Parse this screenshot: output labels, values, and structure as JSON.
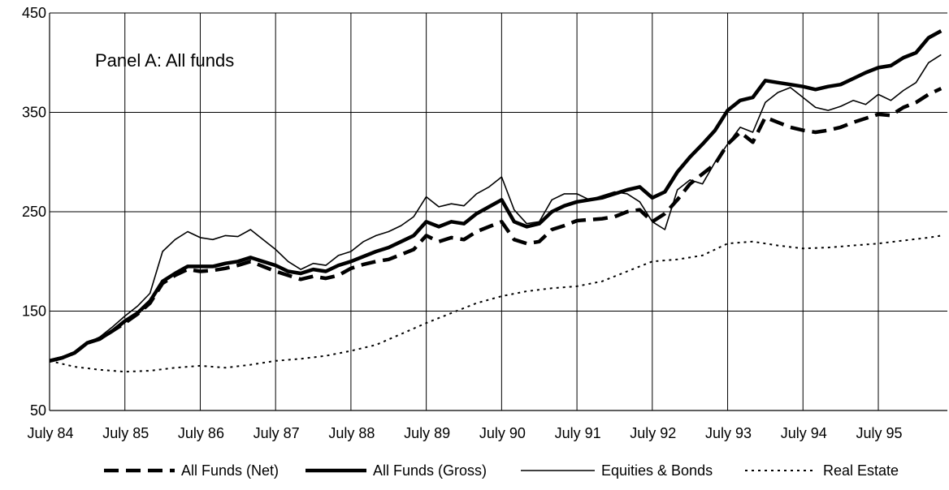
{
  "chart_data": {
    "type": "line",
    "title": "",
    "annotation": "Panel A: All funds",
    "xlabel": "",
    "ylabel": "",
    "ylim": [
      50,
      450
    ],
    "yticks": [
      50,
      150,
      250,
      350,
      450
    ],
    "x_tick_labels": [
      "July 84",
      "July 85",
      "July 86",
      "July 87",
      "July 88",
      "July 89",
      "July 90",
      "July 91",
      "July 92",
      "July 93",
      "July 94",
      "July 95"
    ],
    "x_tick_values": [
      0,
      12,
      24,
      36,
      48,
      60,
      72,
      84,
      96,
      108,
      120,
      132
    ],
    "x_unit": "months since July 84",
    "xlim": [
      0,
      143
    ],
    "grid": true,
    "legend_position": "bottom",
    "series": [
      {
        "name": "All Funds (Net)",
        "style": "dashed-thick",
        "color": "#000000",
        "points": [
          [
            0,
            100
          ],
          [
            2,
            103
          ],
          [
            4,
            108
          ],
          [
            6,
            118
          ],
          [
            8,
            122
          ],
          [
            10,
            130
          ],
          [
            12,
            138
          ],
          [
            14,
            147
          ],
          [
            16,
            158
          ],
          [
            18,
            178
          ],
          [
            20,
            186
          ],
          [
            22,
            192
          ],
          [
            24,
            190
          ],
          [
            26,
            191
          ],
          [
            28,
            193
          ],
          [
            30,
            196
          ],
          [
            32,
            200
          ],
          [
            34,
            195
          ],
          [
            36,
            190
          ],
          [
            38,
            186
          ],
          [
            40,
            182
          ],
          [
            42,
            185
          ],
          [
            44,
            183
          ],
          [
            46,
            186
          ],
          [
            48,
            193
          ],
          [
            50,
            197
          ],
          [
            52,
            200
          ],
          [
            54,
            202
          ],
          [
            56,
            207
          ],
          [
            58,
            212
          ],
          [
            60,
            226
          ],
          [
            62,
            220
          ],
          [
            64,
            224
          ],
          [
            66,
            222
          ],
          [
            68,
            230
          ],
          [
            70,
            235
          ],
          [
            72,
            240
          ],
          [
            74,
            222
          ],
          [
            76,
            218
          ],
          [
            78,
            220
          ],
          [
            80,
            232
          ],
          [
            82,
            236
          ],
          [
            84,
            241
          ],
          [
            86,
            242
          ],
          [
            88,
            243
          ],
          [
            90,
            245
          ],
          [
            92,
            250
          ],
          [
            94,
            252
          ],
          [
            96,
            240
          ],
          [
            98,
            248
          ],
          [
            100,
            262
          ],
          [
            102,
            278
          ],
          [
            104,
            288
          ],
          [
            106,
            298
          ],
          [
            108,
            318
          ],
          [
            110,
            330
          ],
          [
            112,
            320
          ],
          [
            114,
            345
          ],
          [
            116,
            340
          ],
          [
            118,
            335
          ],
          [
            120,
            332
          ],
          [
            122,
            330
          ],
          [
            124,
            332
          ],
          [
            126,
            335
          ],
          [
            128,
            340
          ],
          [
            130,
            344
          ],
          [
            132,
            348
          ],
          [
            134,
            347
          ],
          [
            136,
            355
          ],
          [
            138,
            360
          ],
          [
            140,
            368
          ],
          [
            142,
            374
          ]
        ]
      },
      {
        "name": "All Funds (Gross)",
        "style": "solid-thick",
        "color": "#000000",
        "points": [
          [
            0,
            100
          ],
          [
            2,
            103
          ],
          [
            4,
            108
          ],
          [
            6,
            118
          ],
          [
            8,
            122
          ],
          [
            10,
            130
          ],
          [
            12,
            140
          ],
          [
            14,
            148
          ],
          [
            16,
            160
          ],
          [
            18,
            180
          ],
          [
            20,
            188
          ],
          [
            22,
            195
          ],
          [
            24,
            195
          ],
          [
            26,
            195
          ],
          [
            28,
            198
          ],
          [
            30,
            200
          ],
          [
            32,
            204
          ],
          [
            34,
            200
          ],
          [
            36,
            196
          ],
          [
            38,
            190
          ],
          [
            40,
            188
          ],
          [
            42,
            192
          ],
          [
            44,
            190
          ],
          [
            46,
            196
          ],
          [
            48,
            200
          ],
          [
            50,
            205
          ],
          [
            52,
            210
          ],
          [
            54,
            214
          ],
          [
            56,
            220
          ],
          [
            58,
            226
          ],
          [
            60,
            240
          ],
          [
            62,
            235
          ],
          [
            64,
            240
          ],
          [
            66,
            238
          ],
          [
            68,
            248
          ],
          [
            70,
            255
          ],
          [
            72,
            262
          ],
          [
            74,
            240
          ],
          [
            76,
            235
          ],
          [
            78,
            238
          ],
          [
            80,
            250
          ],
          [
            82,
            256
          ],
          [
            84,
            260
          ],
          [
            86,
            262
          ],
          [
            88,
            264
          ],
          [
            90,
            268
          ],
          [
            92,
            272
          ],
          [
            94,
            275
          ],
          [
            96,
            264
          ],
          [
            98,
            270
          ],
          [
            100,
            290
          ],
          [
            102,
            305
          ],
          [
            104,
            318
          ],
          [
            106,
            332
          ],
          [
            108,
            352
          ],
          [
            110,
            362
          ],
          [
            112,
            365
          ],
          [
            114,
            382
          ],
          [
            116,
            380
          ],
          [
            118,
            378
          ],
          [
            120,
            376
          ],
          [
            122,
            373
          ],
          [
            124,
            376
          ],
          [
            126,
            378
          ],
          [
            128,
            384
          ],
          [
            130,
            390
          ],
          [
            132,
            395
          ],
          [
            134,
            397
          ],
          [
            136,
            405
          ],
          [
            138,
            410
          ],
          [
            140,
            425
          ],
          [
            142,
            432
          ]
        ]
      },
      {
        "name": "Equities & Bonds",
        "style": "solid-thin",
        "color": "#000000",
        "points": [
          [
            0,
            100
          ],
          [
            2,
            103
          ],
          [
            4,
            108
          ],
          [
            6,
            118
          ],
          [
            8,
            124
          ],
          [
            10,
            134
          ],
          [
            12,
            145
          ],
          [
            14,
            155
          ],
          [
            16,
            168
          ],
          [
            18,
            210
          ],
          [
            20,
            222
          ],
          [
            22,
            230
          ],
          [
            24,
            224
          ],
          [
            26,
            222
          ],
          [
            28,
            226
          ],
          [
            30,
            225
          ],
          [
            32,
            232
          ],
          [
            34,
            222
          ],
          [
            36,
            212
          ],
          [
            38,
            200
          ],
          [
            40,
            192
          ],
          [
            42,
            198
          ],
          [
            44,
            196
          ],
          [
            46,
            206
          ],
          [
            48,
            210
          ],
          [
            50,
            220
          ],
          [
            52,
            226
          ],
          [
            54,
            230
          ],
          [
            56,
            236
          ],
          [
            58,
            245
          ],
          [
            60,
            265
          ],
          [
            62,
            255
          ],
          [
            64,
            258
          ],
          [
            66,
            256
          ],
          [
            68,
            268
          ],
          [
            70,
            275
          ],
          [
            72,
            285
          ],
          [
            74,
            252
          ],
          [
            76,
            238
          ],
          [
            78,
            240
          ],
          [
            80,
            262
          ],
          [
            82,
            268
          ],
          [
            84,
            268
          ],
          [
            86,
            262
          ],
          [
            88,
            266
          ],
          [
            90,
            270
          ],
          [
            92,
            268
          ],
          [
            94,
            260
          ],
          [
            96,
            240
          ],
          [
            98,
            232
          ],
          [
            100,
            272
          ],
          [
            102,
            282
          ],
          [
            104,
            278
          ],
          [
            106,
            300
          ],
          [
            108,
            318
          ],
          [
            110,
            335
          ],
          [
            112,
            330
          ],
          [
            114,
            360
          ],
          [
            116,
            370
          ],
          [
            118,
            375
          ],
          [
            120,
            365
          ],
          [
            122,
            355
          ],
          [
            124,
            352
          ],
          [
            126,
            356
          ],
          [
            128,
            362
          ],
          [
            130,
            358
          ],
          [
            132,
            368
          ],
          [
            134,
            362
          ],
          [
            136,
            372
          ],
          [
            138,
            380
          ],
          [
            140,
            400
          ],
          [
            142,
            408
          ]
        ]
      },
      {
        "name": "Real Estate",
        "style": "dotted",
        "color": "#000000",
        "points": [
          [
            0,
            100
          ],
          [
            4,
            94
          ],
          [
            8,
            91
          ],
          [
            12,
            89
          ],
          [
            16,
            90
          ],
          [
            20,
            93
          ],
          [
            24,
            95
          ],
          [
            28,
            93
          ],
          [
            32,
            96
          ],
          [
            36,
            100
          ],
          [
            40,
            102
          ],
          [
            44,
            105
          ],
          [
            48,
            110
          ],
          [
            52,
            116
          ],
          [
            56,
            127
          ],
          [
            60,
            138
          ],
          [
            64,
            148
          ],
          [
            68,
            158
          ],
          [
            72,
            165
          ],
          [
            76,
            170
          ],
          [
            80,
            173
          ],
          [
            84,
            175
          ],
          [
            88,
            180
          ],
          [
            92,
            190
          ],
          [
            96,
            200
          ],
          [
            100,
            202
          ],
          [
            104,
            206
          ],
          [
            108,
            218
          ],
          [
            112,
            220
          ],
          [
            116,
            216
          ],
          [
            120,
            213
          ],
          [
            124,
            214
          ],
          [
            128,
            216
          ],
          [
            132,
            218
          ],
          [
            136,
            221
          ],
          [
            140,
            224
          ],
          [
            142,
            226
          ]
        ]
      }
    ]
  }
}
